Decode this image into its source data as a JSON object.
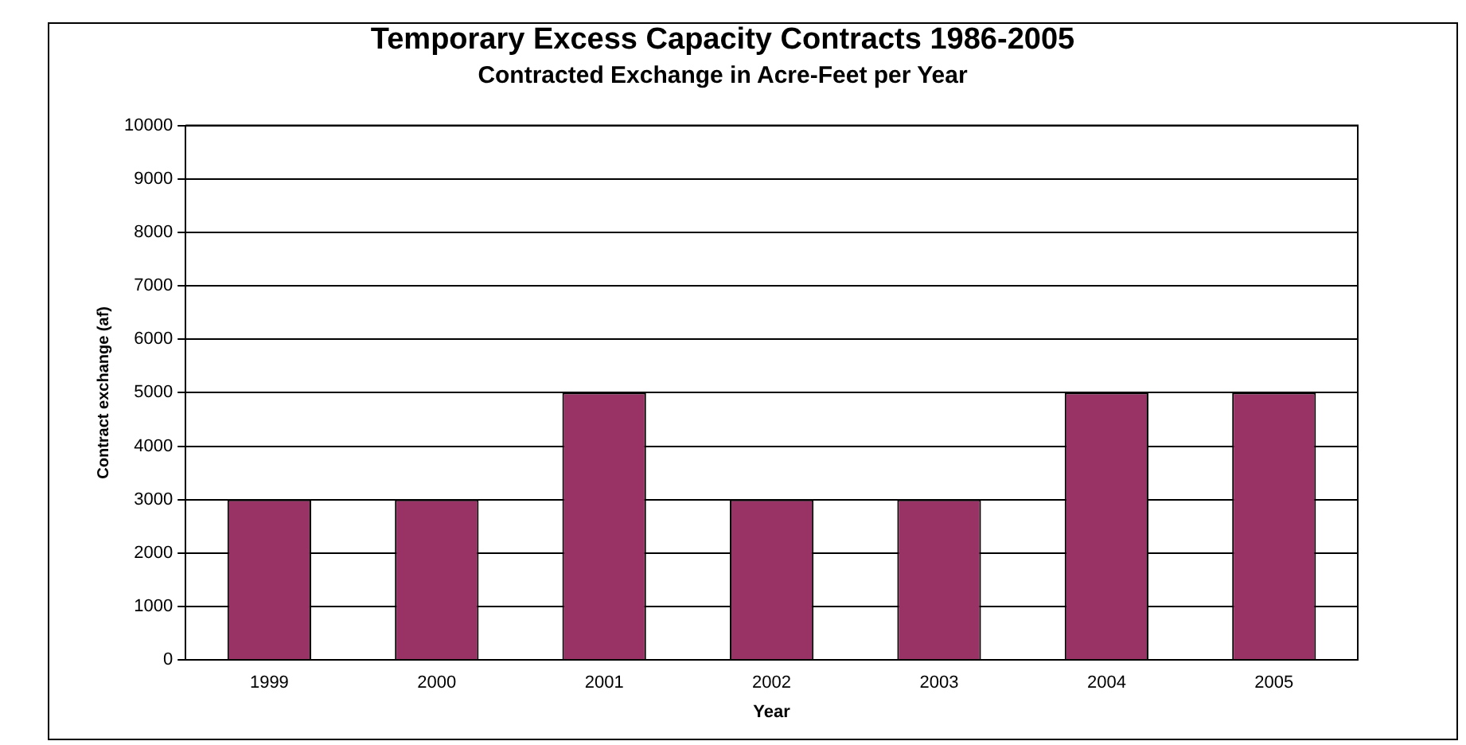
{
  "chart_data": {
    "type": "bar",
    "title": "Temporary Excess Capacity Contracts 1986-2005",
    "subtitle": "Contracted Exchange in Acre-Feet per Year",
    "xlabel": "Year",
    "ylabel": "Contract exchange (af)",
    "categories": [
      "1999",
      "2000",
      "2001",
      "2002",
      "2003",
      "2004",
      "2005"
    ],
    "values": [
      3000,
      3000,
      5000,
      3000,
      3000,
      5000,
      5000
    ],
    "color": "#993366",
    "ylim": [
      0,
      10000
    ],
    "yticks": [
      0,
      1000,
      2000,
      3000,
      4000,
      5000,
      6000,
      7000,
      8000,
      9000,
      10000
    ],
    "grid": "y",
    "legend": false
  }
}
